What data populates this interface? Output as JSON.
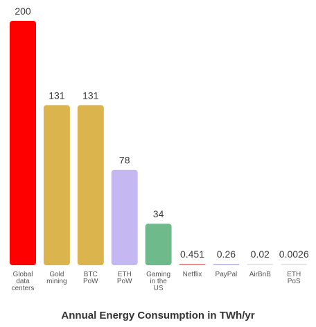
{
  "chart_data": {
    "type": "bar",
    "title": "Annual Energy Consumption in TWh/yr",
    "xlabel": "",
    "ylabel": "",
    "ylim": [
      0,
      200
    ],
    "grid": false,
    "legend": "none",
    "bars": [
      {
        "category": [
          "Global",
          "data",
          "centers"
        ],
        "value": 200,
        "label": "200",
        "color": "#ff0000"
      },
      {
        "category": [
          "Gold",
          "mining"
        ],
        "value": 131,
        "label": "131",
        "color": "#dbb44e"
      },
      {
        "category": [
          "BTC",
          "PoW"
        ],
        "value": 131,
        "label": "131",
        "color": "#dbb44e"
      },
      {
        "category": [
          "ETH",
          "PoW"
        ],
        "value": 78,
        "label": "78",
        "color": "#c5b8f2"
      },
      {
        "category": [
          "Gaming",
          "in the",
          "US"
        ],
        "value": 34,
        "label": "34",
        "color": "#6fba8a"
      },
      {
        "category": [
          "Netflix"
        ],
        "value": 0.451,
        "label": "0.451",
        "color": "#f08a8a"
      },
      {
        "category": [
          "PayPal"
        ],
        "value": 0.26,
        "label": "0.26",
        "color": "#c6bff0"
      },
      {
        "category": [
          "AirBnB"
        ],
        "value": 0.02,
        "label": "0.02",
        "color": "#e6e6e6"
      },
      {
        "category": [
          "ETH",
          "PoS"
        ],
        "value": 0.0026,
        "label": "0.0026",
        "color": "#e6e6e6"
      }
    ]
  }
}
